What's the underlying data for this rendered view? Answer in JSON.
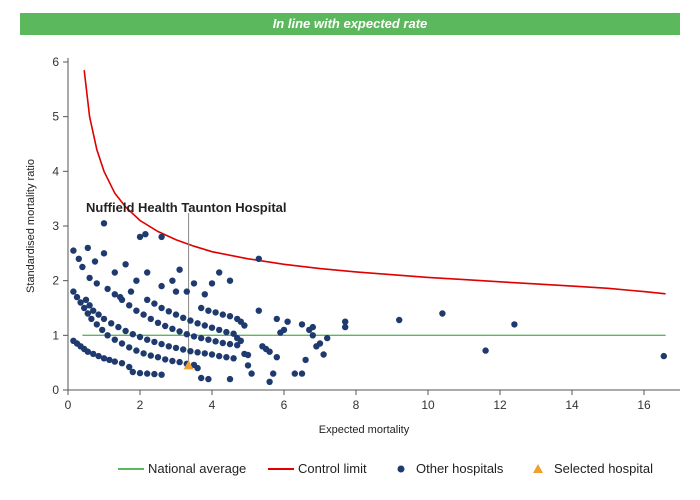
{
  "header": {
    "status": "In line with expected rate"
  },
  "chart_data": {
    "type": "scatter",
    "title": "",
    "xlabel": "Expected mortality",
    "ylabel": "Standardised mortality ratio",
    "xlim": [
      0,
      17
    ],
    "ylim": [
      0,
      6
    ],
    "x_ticks": [
      0,
      2,
      4,
      6,
      8,
      10,
      12,
      14,
      16
    ],
    "y_ticks": [
      0,
      1,
      2,
      3,
      4,
      5,
      6
    ],
    "grid": false,
    "legend_position": "bottom",
    "annotation": {
      "text": "Nuffield Health Taunton Hospital",
      "x": 3.35,
      "y": 0.45
    },
    "series": [
      {
        "name": "National average",
        "kind": "line",
        "color": "#5cb85c",
        "x": [
          0.4,
          16.6
        ],
        "y": [
          1,
          1
        ]
      },
      {
        "name": "Control limit",
        "kind": "line",
        "color": "#e00000",
        "x": [
          0.45,
          0.6,
          0.8,
          1.0,
          1.3,
          1.6,
          2.0,
          2.5,
          3.0,
          3.5,
          4.0,
          5.0,
          6.0,
          7.0,
          8.0,
          9.0,
          10.0,
          11.0,
          12.0,
          13.0,
          14.0,
          15.0,
          16.0,
          16.6
        ],
        "y": [
          5.85,
          5.0,
          4.4,
          4.0,
          3.6,
          3.35,
          3.1,
          2.9,
          2.75,
          2.63,
          2.53,
          2.4,
          2.3,
          2.22,
          2.16,
          2.11,
          2.06,
          2.02,
          1.98,
          1.94,
          1.9,
          1.86,
          1.8,
          1.76
        ]
      },
      {
        "name": "Other hospitals",
        "kind": "scatter",
        "color": "#1f3a6e",
        "points": [
          [
            0.15,
            0.9
          ],
          [
            0.25,
            0.85
          ],
          [
            0.35,
            0.8
          ],
          [
            0.45,
            0.75
          ],
          [
            0.55,
            0.7
          ],
          [
            0.7,
            0.66
          ],
          [
            0.85,
            0.62
          ],
          [
            1.0,
            0.58
          ],
          [
            1.15,
            0.55
          ],
          [
            1.3,
            0.52
          ],
          [
            1.5,
            0.49
          ],
          [
            1.7,
            0.42
          ],
          [
            1.8,
            0.33
          ],
          [
            2.0,
            0.31
          ],
          [
            2.2,
            0.3
          ],
          [
            2.4,
            0.29
          ],
          [
            2.6,
            0.28
          ],
          [
            0.15,
            1.8
          ],
          [
            0.25,
            1.7
          ],
          [
            0.35,
            1.6
          ],
          [
            0.45,
            1.5
          ],
          [
            0.55,
            1.4
          ],
          [
            0.65,
            1.3
          ],
          [
            0.8,
            1.2
          ],
          [
            0.95,
            1.1
          ],
          [
            1.1,
            1.0
          ],
          [
            1.3,
            0.92
          ],
          [
            1.5,
            0.85
          ],
          [
            1.7,
            0.78
          ],
          [
            1.9,
            0.72
          ],
          [
            2.1,
            0.67
          ],
          [
            2.3,
            0.63
          ],
          [
            2.5,
            0.6
          ],
          [
            2.7,
            0.56
          ],
          [
            2.9,
            0.53
          ],
          [
            3.1,
            0.51
          ],
          [
            3.3,
            0.48
          ],
          [
            3.5,
            0.46
          ],
          [
            0.5,
            1.65
          ],
          [
            0.6,
            1.55
          ],
          [
            0.7,
            1.45
          ],
          [
            0.85,
            1.38
          ],
          [
            1.0,
            1.3
          ],
          [
            1.2,
            1.22
          ],
          [
            1.4,
            1.15
          ],
          [
            1.6,
            1.08
          ],
          [
            1.8,
            1.02
          ],
          [
            2.0,
            0.97
          ],
          [
            2.2,
            0.92
          ],
          [
            2.4,
            0.88
          ],
          [
            2.6,
            0.84
          ],
          [
            2.8,
            0.8
          ],
          [
            3.0,
            0.77
          ],
          [
            3.2,
            0.74
          ],
          [
            3.4,
            0.71
          ],
          [
            3.6,
            0.69
          ],
          [
            3.8,
            0.67
          ],
          [
            4.0,
            0.65
          ],
          [
            4.2,
            0.62
          ],
          [
            4.4,
            0.6
          ],
          [
            4.6,
            0.58
          ],
          [
            1.3,
            1.75
          ],
          [
            1.5,
            1.65
          ],
          [
            1.7,
            1.55
          ],
          [
            1.9,
            1.45
          ],
          [
            2.1,
            1.38
          ],
          [
            2.3,
            1.3
          ],
          [
            2.5,
            1.23
          ],
          [
            2.7,
            1.17
          ],
          [
            2.9,
            1.12
          ],
          [
            3.1,
            1.07
          ],
          [
            3.3,
            1.02
          ],
          [
            3.5,
            0.98
          ],
          [
            3.7,
            0.95
          ],
          [
            3.9,
            0.92
          ],
          [
            4.1,
            0.89
          ],
          [
            4.3,
            0.86
          ],
          [
            4.5,
            0.84
          ],
          [
            4.7,
            0.82
          ],
          [
            2.2,
            1.65
          ],
          [
            2.4,
            1.58
          ],
          [
            2.6,
            1.5
          ],
          [
            2.8,
            1.44
          ],
          [
            3.0,
            1.38
          ],
          [
            3.2,
            1.32
          ],
          [
            3.4,
            1.27
          ],
          [
            3.6,
            1.22
          ],
          [
            3.8,
            1.18
          ],
          [
            4.0,
            1.14
          ],
          [
            4.2,
            1.1
          ],
          [
            4.4,
            1.06
          ],
          [
            4.6,
            1.03
          ],
          [
            3.7,
            1.5
          ],
          [
            3.9,
            1.45
          ],
          [
            4.1,
            1.42
          ],
          [
            4.3,
            1.38
          ],
          [
            4.5,
            1.35
          ],
          [
            4.7,
            1.3
          ],
          [
            4.8,
            1.25
          ],
          [
            4.9,
            1.18
          ],
          [
            4.0,
            1.95
          ],
          [
            3.8,
            1.75
          ],
          [
            3.3,
            1.8
          ],
          [
            4.8,
            0.9
          ],
          [
            4.9,
            0.66
          ],
          [
            5.0,
            0.64
          ],
          [
            4.7,
            0.95
          ],
          [
            0.15,
            2.55
          ],
          [
            0.3,
            2.4
          ],
          [
            0.4,
            2.25
          ],
          [
            0.55,
            2.6
          ],
          [
            0.6,
            2.05
          ],
          [
            0.75,
            2.35
          ],
          [
            0.8,
            1.95
          ],
          [
            1.0,
            2.5
          ],
          [
            1.3,
            2.15
          ],
          [
            1.1,
            1.85
          ],
          [
            1.45,
            1.7
          ],
          [
            1.6,
            2.3
          ],
          [
            1.75,
            1.8
          ],
          [
            1.9,
            2.0
          ],
          [
            2.2,
            2.15
          ],
          [
            2.0,
            2.8
          ],
          [
            2.6,
            2.8
          ],
          [
            2.6,
            1.9
          ],
          [
            2.9,
            2.0
          ],
          [
            3.1,
            2.2
          ],
          [
            3.0,
            1.8
          ],
          [
            4.2,
            2.15
          ],
          [
            4.5,
            2.0
          ],
          [
            5.3,
            2.4
          ],
          [
            3.5,
            1.95
          ],
          [
            1.0,
            3.05
          ],
          [
            2.15,
            2.85
          ],
          [
            5.3,
            1.45
          ],
          [
            5.4,
            0.8
          ],
          [
            5.5,
            0.75
          ],
          [
            5.6,
            0.7
          ],
          [
            5.8,
            0.6
          ],
          [
            5.9,
            1.05
          ],
          [
            6.0,
            1.1
          ],
          [
            6.1,
            1.25
          ],
          [
            5.8,
            1.3
          ],
          [
            6.3,
            0.3
          ],
          [
            6.5,
            0.3
          ],
          [
            6.5,
            1.2
          ],
          [
            6.6,
            0.55
          ],
          [
            6.7,
            1.1
          ],
          [
            6.8,
            1.15
          ],
          [
            6.8,
            1.0
          ],
          [
            6.9,
            0.8
          ],
          [
            7.0,
            0.85
          ],
          [
            7.1,
            0.65
          ],
          [
            7.2,
            0.95
          ],
          [
            7.7,
            1.15
          ],
          [
            7.7,
            1.25
          ],
          [
            5.0,
            0.45
          ],
          [
            4.5,
            0.2
          ],
          [
            3.6,
            0.4
          ],
          [
            3.7,
            0.22
          ],
          [
            3.9,
            0.2
          ],
          [
            5.1,
            0.3
          ],
          [
            5.6,
            0.15
          ],
          [
            5.7,
            0.3
          ],
          [
            9.2,
            1.28
          ],
          [
            10.4,
            1.4
          ],
          [
            11.6,
            0.72
          ],
          [
            12.4,
            1.2
          ],
          [
            16.55,
            0.62
          ]
        ]
      },
      {
        "name": "Selected hospital",
        "kind": "marker",
        "color": "#f0a030",
        "points": [
          [
            3.35,
            0.45
          ]
        ]
      }
    ]
  }
}
